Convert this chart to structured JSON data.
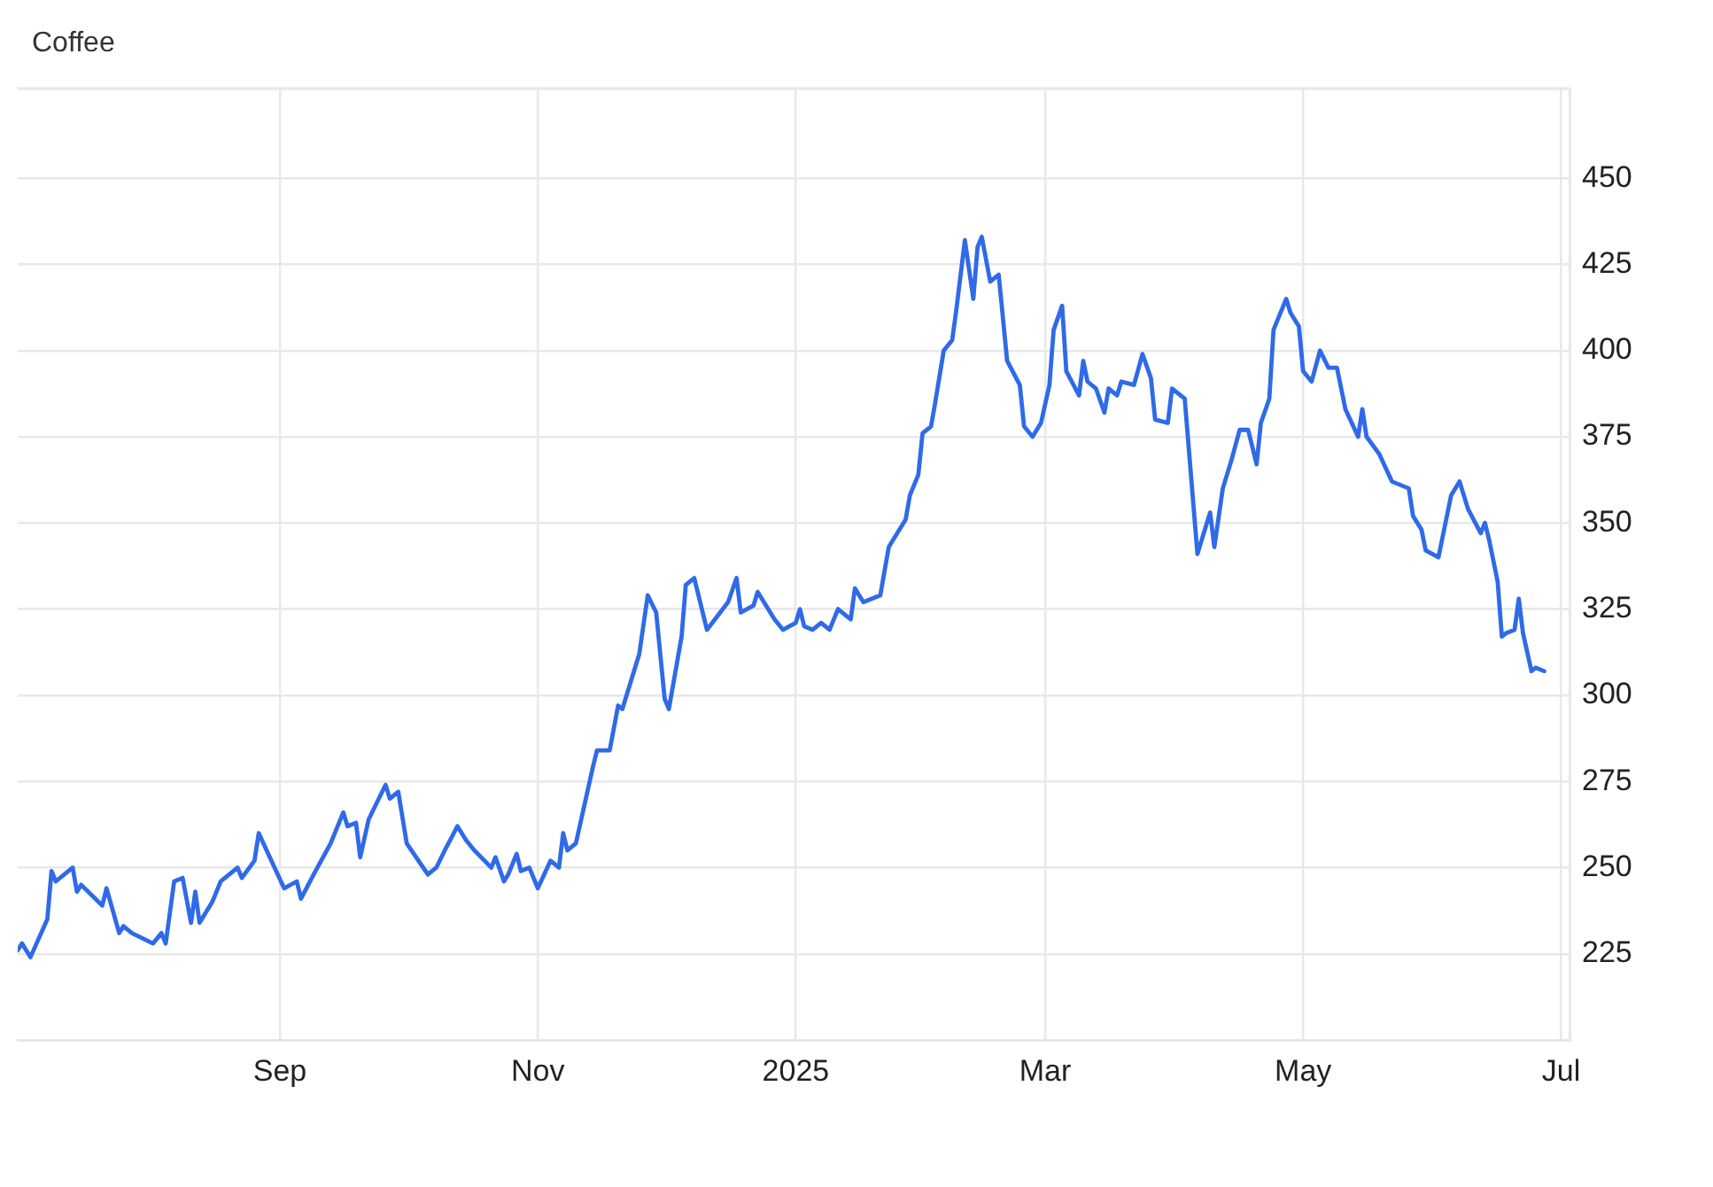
{
  "chart_data": {
    "type": "line",
    "title": "Coffee",
    "color": "#2f6ae8",
    "grid": true,
    "xlim": [
      "2024-07-01",
      "2025-07-03"
    ],
    "xticks": [
      {
        "value": "2024-09-01",
        "label": "Sep"
      },
      {
        "value": "2024-11-01",
        "label": "Nov"
      },
      {
        "value": "2025-01-01",
        "label": "2025"
      },
      {
        "value": "2025-03-01",
        "label": "Mar"
      },
      {
        "value": "2025-05-01",
        "label": "May"
      },
      {
        "value": "2025-07-01",
        "label": "Jul"
      }
    ],
    "ylim": [
      200,
      476
    ],
    "yticks": [
      225,
      250,
      275,
      300,
      325,
      350,
      375,
      400,
      425,
      450
    ],
    "x": [
      "2024-07-01",
      "2024-07-02",
      "2024-07-04",
      "2024-07-08",
      "2024-07-09",
      "2024-07-10",
      "2024-07-14",
      "2024-07-15",
      "2024-07-16",
      "2024-07-21",
      "2024-07-22",
      "2024-07-25",
      "2024-07-26",
      "2024-07-28",
      "2024-08-02",
      "2024-08-04",
      "2024-08-05",
      "2024-08-07",
      "2024-08-09",
      "2024-08-11",
      "2024-08-12",
      "2024-08-13",
      "2024-08-16",
      "2024-08-18",
      "2024-08-22",
      "2024-08-23",
      "2024-08-26",
      "2024-08-27",
      "2024-08-30",
      "2024-09-02",
      "2024-09-05",
      "2024-09-06",
      "2024-09-09",
      "2024-09-13",
      "2024-09-16",
      "2024-09-17",
      "2024-09-19",
      "2024-09-20",
      "2024-09-22",
      "2024-09-26",
      "2024-09-27",
      "2024-09-29",
      "2024-10-01",
      "2024-10-06",
      "2024-10-08",
      "2024-10-10",
      "2024-10-13",
      "2024-10-15",
      "2024-10-17",
      "2024-10-21",
      "2024-10-22",
      "2024-10-24",
      "2024-10-25",
      "2024-10-27",
      "2024-10-28",
      "2024-10-30",
      "2024-11-01",
      "2024-11-04",
      "2024-11-06",
      "2024-11-07",
      "2024-11-08",
      "2024-11-10",
      "2024-11-14",
      "2024-11-15",
      "2024-11-18",
      "2024-11-20",
      "2024-11-21",
      "2024-11-25",
      "2024-11-27",
      "2024-11-29",
      "2024-12-01",
      "2024-12-02",
      "2024-12-05",
      "2024-12-06",
      "2024-12-08",
      "2024-12-11",
      "2024-12-16",
      "2024-12-18",
      "2024-12-19",
      "2024-12-22",
      "2024-12-23",
      "2024-12-27",
      "2024-12-29",
      "2025-01-01",
      "2025-01-02",
      "2025-01-03",
      "2025-01-05",
      "2025-01-07",
      "2025-01-09",
      "2025-01-11",
      "2025-01-14",
      "2025-01-15",
      "2025-01-17",
      "2025-01-21",
      "2025-01-23",
      "2025-01-27",
      "2025-01-28",
      "2025-01-30",
      "2025-01-31",
      "2025-02-02",
      "2025-02-03",
      "2025-02-05",
      "2025-02-07",
      "2025-02-08",
      "2025-02-10",
      "2025-02-12",
      "2025-02-13",
      "2025-02-14",
      "2025-02-16",
      "2025-02-18",
      "2025-02-20",
      "2025-02-23",
      "2025-02-24",
      "2025-02-26",
      "2025-02-28",
      "2025-03-02",
      "2025-03-03",
      "2025-03-05",
      "2025-03-06",
      "2025-03-09",
      "2025-03-10",
      "2025-03-11",
      "2025-03-13",
      "2025-03-15",
      "2025-03-16",
      "2025-03-18",
      "2025-03-19",
      "2025-03-22",
      "2025-03-24",
      "2025-03-26",
      "2025-03-27",
      "2025-03-30",
      "2025-03-31",
      "2025-04-03",
      "2025-04-06",
      "2025-04-09",
      "2025-04-10",
      "2025-04-12",
      "2025-04-14",
      "2025-04-16",
      "2025-04-18",
      "2025-04-20",
      "2025-04-21",
      "2025-04-23",
      "2025-04-24",
      "2025-04-27",
      "2025-04-28",
      "2025-04-30",
      "2025-05-01",
      "2025-05-03",
      "2025-05-05",
      "2025-05-07",
      "2025-05-09",
      "2025-05-11",
      "2025-05-14",
      "2025-05-15",
      "2025-05-16",
      "2025-05-19",
      "2025-05-22",
      "2025-05-26",
      "2025-05-27",
      "2025-05-29",
      "2025-05-30",
      "2025-06-02",
      "2025-06-03",
      "2025-06-05",
      "2025-06-07",
      "2025-06-09",
      "2025-06-12",
      "2025-06-13",
      "2025-06-14",
      "2025-06-16",
      "2025-06-17",
      "2025-06-18",
      "2025-06-20",
      "2025-06-21",
      "2025-06-22",
      "2025-06-24",
      "2025-06-25",
      "2025-06-27"
    ],
    "values": [
      226,
      228,
      224,
      235,
      249,
      246,
      250,
      243,
      245,
      239,
      244,
      231,
      233,
      231,
      228,
      231,
      228,
      246,
      247,
      234,
      243,
      234,
      240,
      246,
      250,
      247,
      252,
      260,
      252,
      244,
      246,
      241,
      248,
      257,
      266,
      262,
      263,
      253,
      264,
      274,
      270,
      272,
      257,
      248,
      250,
      255,
      262,
      258,
      255,
      250,
      253,
      246,
      248,
      254,
      249,
      250,
      244,
      252,
      250,
      260,
      255,
      257,
      279,
      284,
      284,
      297,
      296,
      312,
      329,
      324,
      299,
      296,
      317,
      332,
      334,
      319,
      327,
      334,
      324,
      326,
      330,
      322,
      319,
      321,
      325,
      320,
      319,
      321,
      319,
      325,
      322,
      331,
      327,
      329,
      343,
      351,
      358,
      364,
      376,
      378,
      385,
      400,
      403,
      412,
      432,
      415,
      430,
      433,
      420,
      422,
      397,
      390,
      378,
      375,
      379,
      390,
      406,
      413,
      394,
      387,
      397,
      391,
      389,
      382,
      389,
      387,
      391,
      390,
      399,
      392,
      380,
      379,
      389,
      386,
      341,
      353,
      343,
      360,
      368,
      377,
      377,
      367,
      379,
      386,
      406,
      415,
      411,
      407,
      394,
      391,
      400,
      395,
      395,
      383,
      375,
      383,
      375,
      370,
      362,
      360,
      352,
      348,
      342,
      340,
      346,
      358,
      362,
      354,
      347,
      350,
      345,
      333,
      317,
      318,
      319,
      328,
      318,
      307,
      308,
      307
    ]
  }
}
